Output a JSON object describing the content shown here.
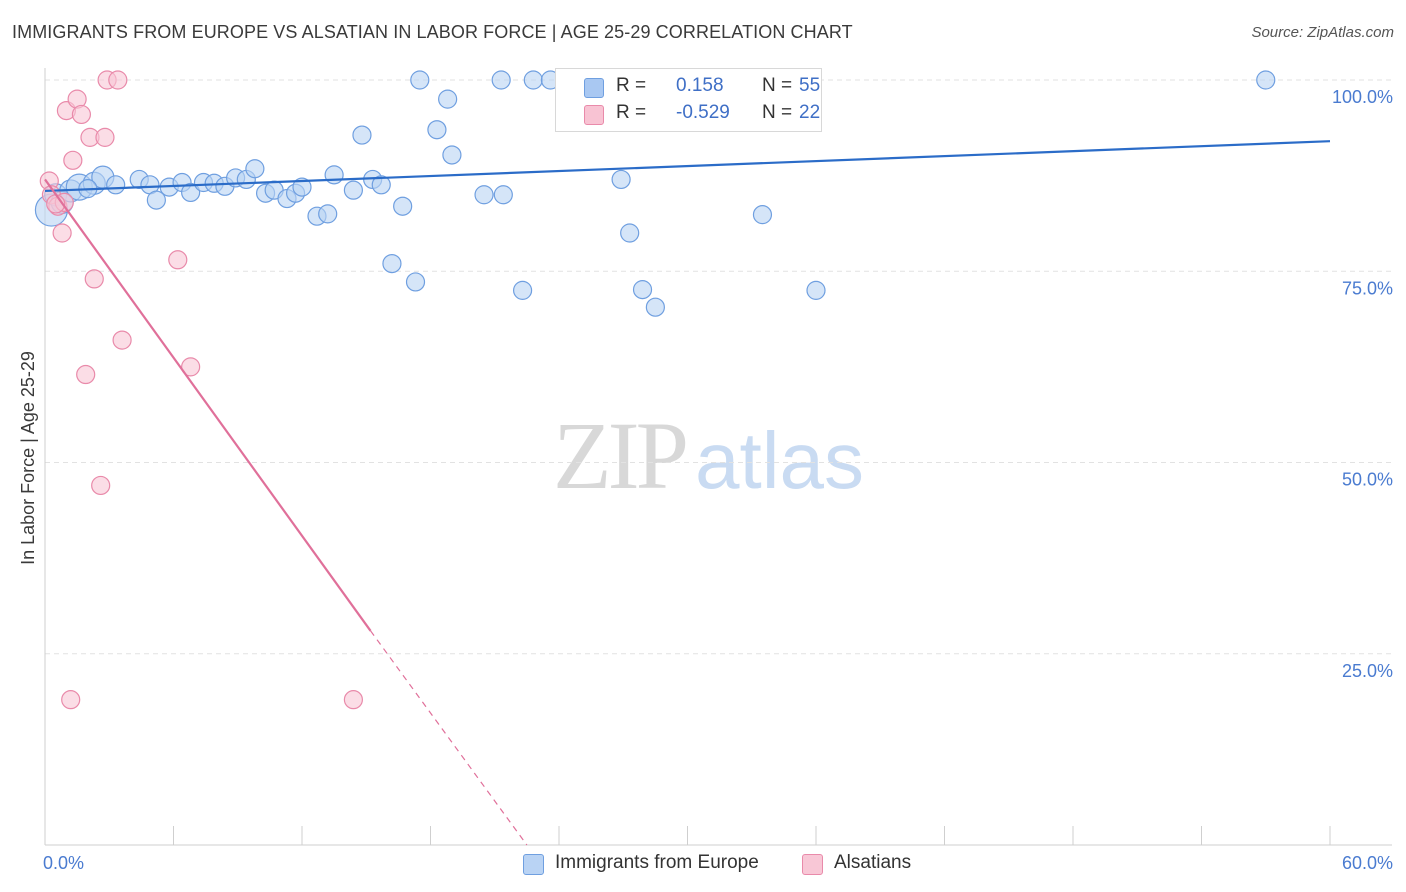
{
  "title": "IMMIGRANTS FROM EUROPE VS ALSATIAN IN LABOR FORCE | AGE 25-29 CORRELATION CHART",
  "source": "Source: ZipAtlas.com",
  "watermark": {
    "zip": "ZIP",
    "atlas": "atlas"
  },
  "legend": {
    "rows": [
      {
        "label": "R =",
        "r": "0.158",
        "n_label": "N =",
        "n": "55",
        "color": "#a9c8f2",
        "border": "#6f9fe0"
      },
      {
        "label": "R =",
        "r": "-0.529",
        "n_label": "N =",
        "n": "22",
        "color": "#f8c3d3",
        "border": "#e98aaa"
      }
    ]
  },
  "series_labels": {
    "europe": "Immigrants from Europe",
    "alsatian": "Alsatians"
  },
  "colors": {
    "europe_fill": "#b9d3f4",
    "europe_stroke": "#6f9fe0",
    "europe_line": "#2b6cc8",
    "alsatian_fill": "#f8c7d6",
    "alsatian_stroke": "#e98aaa",
    "alsatian_line": "#e0709a"
  },
  "chart_data": {
    "type": "scatter",
    "title": "IMMIGRANTS FROM EUROPE VS ALSATIAN IN LABOR FORCE | AGE 25-29 CORRELATION CHART",
    "xlabel": "",
    "ylabel": "In Labor Force | Age 25-29",
    "xlim": [
      0,
      60
    ],
    "ylim": [
      0,
      100
    ],
    "x_tick_labels": [
      "0.0%",
      "60.0%"
    ],
    "y_tick_labels": [
      "100.0%",
      "75.0%",
      "50.0%",
      "25.0%"
    ],
    "y_ticks": [
      100,
      75,
      50,
      25
    ],
    "grid": true,
    "legend_position": "top-center",
    "series": [
      {
        "name": "Immigrants from Europe",
        "key": "europe",
        "r": 0.158,
        "n": 55,
        "trend": {
          "x": [
            0,
            60
          ],
          "y": [
            85.5,
            92.0
          ],
          "dashed": false
        },
        "points": [
          [
            0.3,
            83.0,
            16
          ],
          [
            0.5,
            85.0,
            11
          ],
          [
            0.8,
            84.0,
            11
          ],
          [
            1.2,
            85.5,
            11
          ],
          [
            1.6,
            86.0,
            13
          ],
          [
            2.3,
            86.5,
            11
          ],
          [
            2.7,
            87.3,
            11
          ],
          [
            3.3,
            86.3,
            9
          ],
          [
            4.4,
            87.0,
            9
          ],
          [
            4.9,
            86.3,
            9
          ],
          [
            5.2,
            84.3,
            9
          ],
          [
            5.8,
            86.0,
            9
          ],
          [
            6.4,
            86.6,
            9
          ],
          [
            6.8,
            85.3,
            9
          ],
          [
            7.4,
            86.6,
            9
          ],
          [
            7.9,
            86.5,
            9
          ],
          [
            8.4,
            86.1,
            9
          ],
          [
            8.9,
            87.2,
            9
          ],
          [
            9.4,
            87.0,
            9
          ],
          [
            9.8,
            88.4,
            9
          ],
          [
            10.3,
            85.2,
            9
          ],
          [
            10.7,
            85.6,
            9
          ],
          [
            11.3,
            84.5,
            9
          ],
          [
            11.7,
            85.2,
            9
          ],
          [
            12.0,
            86.0,
            9
          ],
          [
            12.7,
            82.2,
            9
          ],
          [
            13.2,
            82.5,
            9
          ],
          [
            13.5,
            87.6,
            9
          ],
          [
            14.4,
            85.6,
            9
          ],
          [
            14.8,
            92.8,
            9
          ],
          [
            15.3,
            87.0,
            9
          ],
          [
            15.7,
            86.3,
            9
          ],
          [
            16.2,
            76.0,
            9
          ],
          [
            16.7,
            83.5,
            9
          ],
          [
            17.3,
            73.6,
            9
          ],
          [
            17.5,
            100.0,
            9
          ],
          [
            18.3,
            93.5,
            9
          ],
          [
            18.8,
            97.5,
            9
          ],
          [
            19.0,
            90.2,
            9
          ],
          [
            20.5,
            85.0,
            9
          ],
          [
            21.3,
            100.0,
            9
          ],
          [
            21.4,
            85.0,
            9
          ],
          [
            22.3,
            72.5,
            9
          ],
          [
            22.8,
            100.0,
            9
          ],
          [
            23.6,
            100.0,
            9
          ],
          [
            24.5,
            97.8,
            9
          ],
          [
            26.9,
            87.0,
            9
          ],
          [
            27.3,
            80.0,
            9
          ],
          [
            27.9,
            72.6,
            9
          ],
          [
            28.5,
            70.3,
            9
          ],
          [
            31.0,
            100.0,
            9
          ],
          [
            33.5,
            82.4,
            9
          ],
          [
            36.0,
            72.5,
            9
          ],
          [
            57.0,
            100.0,
            9
          ],
          [
            2.0,
            85.8,
            9
          ]
        ]
      },
      {
        "name": "Alsatians",
        "key": "alsatian",
        "r": -0.529,
        "n": 22,
        "trend": {
          "x": [
            0,
            15.2,
            22.5
          ],
          "y": [
            87.0,
            28.0,
            0.0
          ],
          "dashed_from_index": 1
        },
        "points": [
          [
            0.2,
            86.8,
            9
          ],
          [
            0.3,
            85.0,
            9
          ],
          [
            0.6,
            83.5,
            9
          ],
          [
            0.9,
            84.0,
            9
          ],
          [
            0.8,
            80.0,
            9
          ],
          [
            1.0,
            96.0,
            9
          ],
          [
            1.3,
            89.5,
            9
          ],
          [
            1.5,
            97.5,
            9
          ],
          [
            1.7,
            95.5,
            9
          ],
          [
            2.1,
            92.5,
            9
          ],
          [
            2.8,
            92.5,
            9
          ],
          [
            2.9,
            100.0,
            9
          ],
          [
            3.4,
            100.0,
            9
          ],
          [
            1.9,
            61.5,
            9
          ],
          [
            2.3,
            74.0,
            9
          ],
          [
            2.6,
            47.0,
            9
          ],
          [
            3.6,
            66.0,
            9
          ],
          [
            6.2,
            76.5,
            9
          ],
          [
            6.8,
            62.5,
            9
          ],
          [
            1.2,
            19.0,
            9
          ],
          [
            14.4,
            19.0,
            9
          ],
          [
            0.5,
            83.8,
            9
          ]
        ]
      }
    ]
  }
}
